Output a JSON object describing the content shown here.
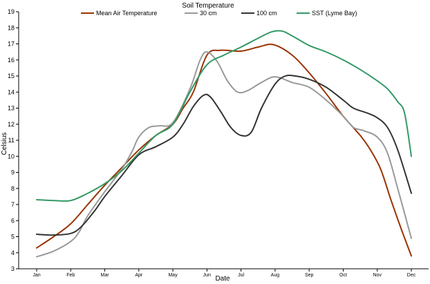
{
  "chart_data": {
    "type": "line",
    "title": "Soil Temperature",
    "xlabel": "Date",
    "ylabel": "Celsius",
    "ylim": [
      3,
      19
    ],
    "yticks": [
      3,
      4,
      5,
      6,
      7,
      8,
      9,
      10,
      11,
      12,
      13,
      14,
      15,
      16,
      17,
      18,
      19
    ],
    "categories": [
      "Jan",
      "Feb",
      "Mar",
      "Apr",
      "May",
      "Jun",
      "Jul",
      "Aug",
      "Sep",
      "Oct",
      "Nov",
      "Dec"
    ],
    "legend_position": "top",
    "grid": false,
    "series": [
      {
        "name": "Mean Air Temperature",
        "color": "#993300",
        "points": [
          [
            0,
            4.3
          ],
          [
            0.5,
            5.0
          ],
          [
            1,
            5.8
          ],
          [
            1.5,
            7.0
          ],
          [
            2,
            8.2
          ],
          [
            2.5,
            9.3
          ],
          [
            3,
            10.4
          ],
          [
            3.5,
            11.3
          ],
          [
            4,
            12.0
          ],
          [
            4.3,
            13.0
          ],
          [
            4.6,
            14.0
          ],
          [
            5,
            16.3
          ],
          [
            5.4,
            16.6
          ],
          [
            6,
            16.55
          ],
          [
            6.5,
            16.8
          ],
          [
            6.95,
            16.95
          ],
          [
            7.5,
            16.3
          ],
          [
            8,
            15.2
          ],
          [
            8.5,
            13.9
          ],
          [
            9,
            12.5
          ],
          [
            9.5,
            11.3
          ],
          [
            9.8,
            10.4
          ],
          [
            10.1,
            9.2
          ],
          [
            10.4,
            7.3
          ],
          [
            10.7,
            5.5
          ],
          [
            11,
            3.8
          ]
        ]
      },
      {
        "name": "30 cm",
        "color": "#999999",
        "points": [
          [
            0,
            3.75
          ],
          [
            0.5,
            4.1
          ],
          [
            1,
            4.7
          ],
          [
            1.25,
            5.3
          ],
          [
            1.5,
            6.3
          ],
          [
            2,
            7.8
          ],
          [
            2.5,
            9.2
          ],
          [
            2.8,
            10.3
          ],
          [
            3,
            11.2
          ],
          [
            3.3,
            11.8
          ],
          [
            3.6,
            11.9
          ],
          [
            4,
            12.1
          ],
          [
            4.5,
            14.2
          ],
          [
            4.8,
            16.0
          ],
          [
            5,
            16.5
          ],
          [
            5.3,
            15.9
          ],
          [
            5.6,
            14.7
          ],
          [
            5.9,
            14.0
          ],
          [
            6.2,
            14.1
          ],
          [
            6.6,
            14.6
          ],
          [
            7,
            14.95
          ],
          [
            7.5,
            14.6
          ],
          [
            8,
            14.3
          ],
          [
            8.5,
            13.5
          ],
          [
            9,
            12.5
          ],
          [
            9.3,
            11.8
          ],
          [
            9.6,
            11.6
          ],
          [
            10,
            11.2
          ],
          [
            10.3,
            10.2
          ],
          [
            10.6,
            8.0
          ],
          [
            11,
            4.9
          ]
        ]
      },
      {
        "name": "100 cm",
        "color": "#333333",
        "points": [
          [
            0,
            5.15
          ],
          [
            0.5,
            5.1
          ],
          [
            1,
            5.2
          ],
          [
            1.3,
            5.6
          ],
          [
            1.7,
            6.6
          ],
          [
            2,
            7.5
          ],
          [
            2.5,
            8.8
          ],
          [
            3,
            10.1
          ],
          [
            3.5,
            10.6
          ],
          [
            4,
            11.2
          ],
          [
            4.3,
            12.0
          ],
          [
            4.6,
            13.1
          ],
          [
            4.9,
            13.8
          ],
          [
            5.1,
            13.7
          ],
          [
            5.4,
            12.8
          ],
          [
            5.7,
            11.8
          ],
          [
            6,
            11.3
          ],
          [
            6.3,
            11.5
          ],
          [
            6.6,
            13.0
          ],
          [
            7,
            14.5
          ],
          [
            7.3,
            15.0
          ],
          [
            7.6,
            15.0
          ],
          [
            8,
            14.8
          ],
          [
            8.5,
            14.3
          ],
          [
            9,
            13.5
          ],
          [
            9.3,
            13.0
          ],
          [
            9.7,
            12.7
          ],
          [
            10,
            12.4
          ],
          [
            10.3,
            11.8
          ],
          [
            10.6,
            10.4
          ],
          [
            11,
            7.7
          ]
        ]
      },
      {
        "name": "SST (Lyme Bay)",
        "color": "#339966",
        "points": [
          [
            0,
            7.3
          ],
          [
            0.5,
            7.25
          ],
          [
            1,
            7.25
          ],
          [
            1.5,
            7.7
          ],
          [
            2,
            8.3
          ],
          [
            2.5,
            9.1
          ],
          [
            3,
            10.2
          ],
          [
            3.5,
            11.3
          ],
          [
            4,
            12.0
          ],
          [
            4.5,
            14.0
          ],
          [
            5,
            15.7
          ],
          [
            5.5,
            16.3
          ],
          [
            6,
            16.8
          ],
          [
            6.5,
            17.35
          ],
          [
            6.9,
            17.75
          ],
          [
            7.2,
            17.8
          ],
          [
            7.5,
            17.5
          ],
          [
            8,
            16.9
          ],
          [
            8.5,
            16.5
          ],
          [
            9,
            16.0
          ],
          [
            9.5,
            15.4
          ],
          [
            10,
            14.7
          ],
          [
            10.3,
            14.2
          ],
          [
            10.6,
            13.4
          ],
          [
            10.8,
            12.7
          ],
          [
            11,
            10.0
          ]
        ]
      }
    ]
  }
}
